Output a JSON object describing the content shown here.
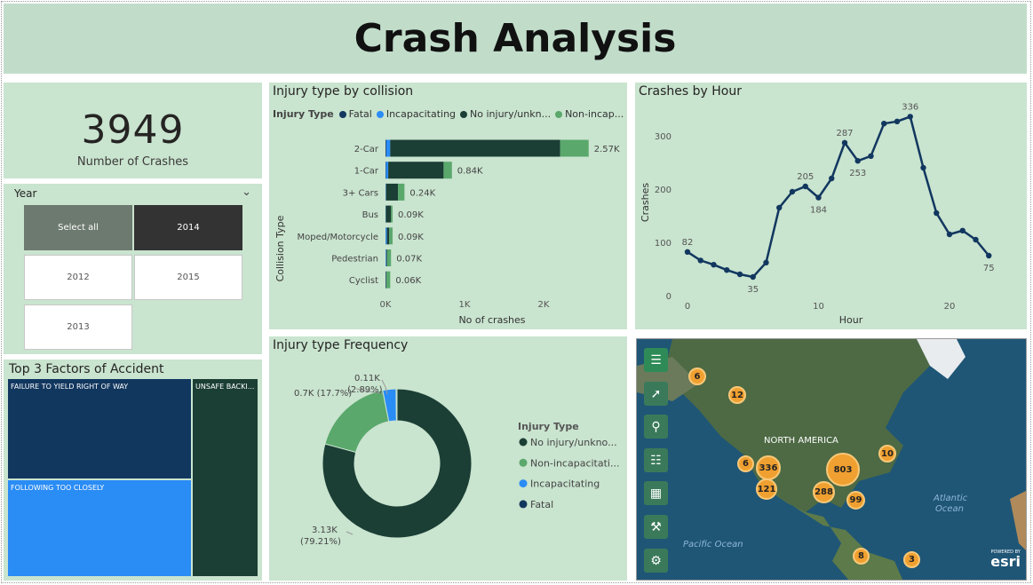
{
  "header": {
    "title": "Crash Analysis"
  },
  "kpi": {
    "value": "3949",
    "label": "Number of Crashes"
  },
  "year_slicer": {
    "title": "Year",
    "options": [
      "Select all",
      "2014",
      "2012",
      "2015",
      "2013"
    ]
  },
  "treemap": {
    "title": "Top 3 Factors of Accident",
    "items": [
      "FAILURE TO YIELD RIGHT OF WAY",
      "FOLLOWING TOO CLOSELY",
      "UNSAFE BACKI..."
    ],
    "colors": [
      "#12375f",
      "#2a8cf5",
      "#1b3e35"
    ]
  },
  "collision_chart": {
    "title": "Injury type by collision",
    "legend_title": "Injury Type",
    "legend": [
      {
        "name": "Fatal",
        "color": "#12375f"
      },
      {
        "name": "Incapacitating",
        "color": "#2a8cf5"
      },
      {
        "name": "No injury/unkn...",
        "color": "#1b3e35"
      },
      {
        "name": "Non-incap...",
        "color": "#5aa86c"
      }
    ],
    "y_axis_title": "Collision Type",
    "x_axis_title": "No of crashes",
    "x_ticks": [
      "0K",
      "1K",
      "2K"
    ]
  },
  "chart_data": [
    {
      "type": "bar",
      "title": "Injury type by collision",
      "categories": [
        "2-Car",
        "1-Car",
        "3+ Cars",
        "Bus",
        "Moped/Motorcycle",
        "Pedestrian",
        "Cyclist"
      ],
      "series": [
        {
          "name": "Fatal",
          "values": [
            10,
            5,
            3,
            2,
            3,
            2,
            1
          ]
        },
        {
          "name": "Incapacitating",
          "values": [
            50,
            30,
            5,
            3,
            15,
            8,
            3
          ]
        },
        {
          "name": "No injury/unknown",
          "values": [
            2150,
            700,
            150,
            65,
            30,
            10,
            10
          ]
        },
        {
          "name": "Non-incapacitating",
          "values": [
            360,
            105,
            82,
            20,
            42,
            50,
            46
          ]
        }
      ],
      "totals": [
        "2.57K",
        "0.84K",
        "0.24K",
        "0.09K",
        "0.09K",
        "0.07K",
        "0.06K"
      ],
      "xlabel": "No of crashes",
      "ylabel": "Collision Type",
      "xlim": [
        0,
        2700
      ]
    },
    {
      "type": "line",
      "title": "Crashes by Hour",
      "x": [
        0,
        1,
        2,
        3,
        4,
        5,
        6,
        7,
        8,
        9,
        10,
        11,
        12,
        13,
        14,
        15,
        16,
        17,
        18,
        19,
        20,
        21,
        22,
        23
      ],
      "values": [
        82,
        66,
        58,
        48,
        40,
        35,
        62,
        165,
        195,
        205,
        184,
        220,
        287,
        253,
        262,
        323,
        327,
        336,
        240,
        155,
        115,
        122,
        105,
        75
      ],
      "labeled": {
        "0": "82",
        "5": "35",
        "9": "205",
        "10": "184",
        "12": "287",
        "13": "253",
        "17": "336",
        "23": "75"
      },
      "xlabel": "Hour",
      "ylabel": "Crashes",
      "x_ticks": [
        "0",
        "10",
        "20"
      ],
      "y_ticks": [
        "0",
        "100",
        "200",
        "300"
      ],
      "ylim": [
        0,
        350
      ],
      "xlim": [
        0,
        24
      ]
    },
    {
      "type": "pie",
      "title": "Injury type Frequency",
      "legend_title": "Injury Type",
      "slices": [
        {
          "name": "No injury/unkno...",
          "value": 79.21,
          "label": "3.13K",
          "pct": "(79.21%)",
          "color": "#1b3e35"
        },
        {
          "name": "Non-incapacitati...",
          "value": 17.7,
          "label": "0.7K (17.7%)",
          "color": "#5aa86c"
        },
        {
          "name": "Incapacitating",
          "value": 2.89,
          "label": "0.11K",
          "pct": "(2.89%)",
          "color": "#2a8cf5"
        },
        {
          "name": "Fatal",
          "value": 0.2,
          "color": "#12375f"
        }
      ]
    }
  ],
  "hour_chart": {
    "title": "Crashes by Hour"
  },
  "freq_chart": {
    "title": "Injury type Frequency",
    "legend_title": "Injury Type"
  },
  "map": {
    "region_label": "NORTH AMERICA",
    "ocean_labels": [
      "Pacific Ocean",
      "Atlantic Ocean"
    ],
    "atlantic_line1": "Atlantic",
    "atlantic_line2": "Ocean",
    "pacific": "Pacific Ocean",
    "clusters": [
      "6",
      "12",
      "6",
      "336",
      "803",
      "10",
      "121",
      "288",
      "99",
      "8",
      "3"
    ],
    "logo_small": "POWERED BY",
    "logo": "esri",
    "tools": [
      "menu-icon",
      "select-icon",
      "search-icon",
      "legend-icon",
      "basemap-icon",
      "tools-icon",
      "settings-icon"
    ]
  }
}
